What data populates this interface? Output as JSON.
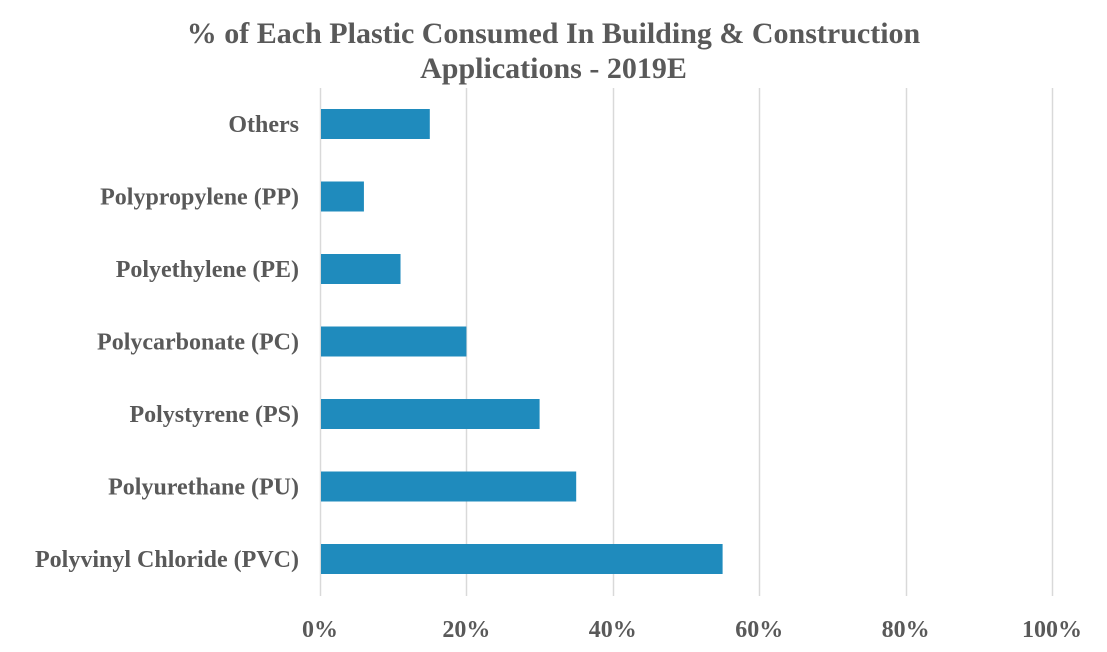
{
  "chart_data": {
    "type": "bar",
    "orientation": "horizontal",
    "title_lines": [
      "% of Each Plastic Consumed In Building & Construction",
      "Applications - 2019E"
    ],
    "categories": [
      "Others",
      "Polypropylene (PP)",
      "Polyethylene (PE)",
      "Polycarbonate (PC)",
      "Polystyrene (PS)",
      "Polyurethane (PU)",
      "Polyvinyl Chloride (PVC)"
    ],
    "values": [
      15,
      6,
      11,
      20,
      30,
      35,
      55
    ],
    "xlim": [
      0,
      100
    ],
    "x_ticks": [
      0,
      20,
      40,
      60,
      80,
      100
    ],
    "x_tick_labels": [
      "0%",
      "20%",
      "40%",
      "60%",
      "80%",
      "100%"
    ],
    "xlabel": "",
    "ylabel": "",
    "grid": "vertical",
    "legend": "none",
    "bar_color": "#1f8bbd",
    "grid_color": "#d9d9d9",
    "text_color": "#595959"
  }
}
